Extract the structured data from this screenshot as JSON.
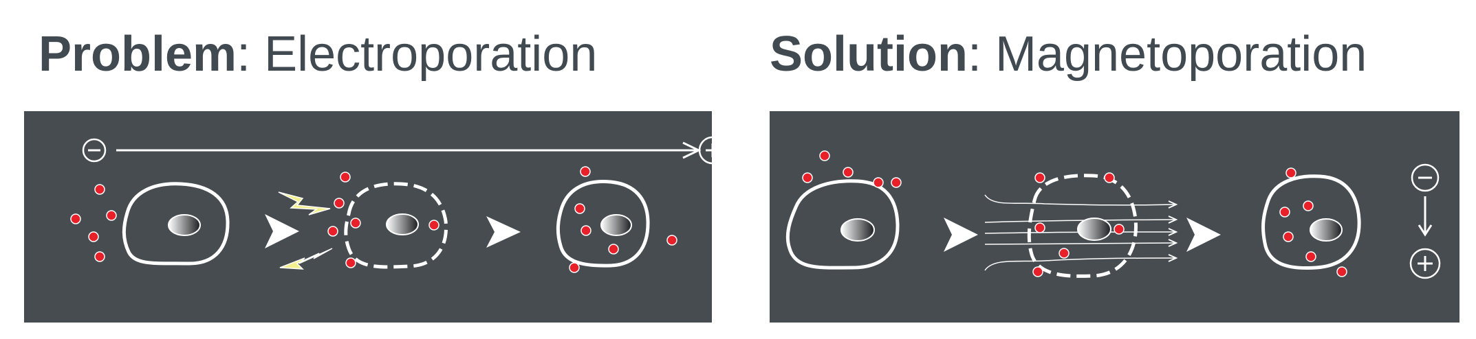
{
  "panels": {
    "problem": {
      "keyword": "Problem",
      "rest": ": Electroporation"
    },
    "solution": {
      "keyword": "Solution",
      "rest": ": Magnetoporation"
    }
  },
  "colors": {
    "background": "#ffffff",
    "panel": "#464c50",
    "heading_text": "#414a51",
    "stroke": "#ffffff",
    "dot": "#e8202a",
    "spark": "#f4ef8e"
  },
  "icons": {
    "negative_electrode": "minus-circle-icon",
    "positive_electrode": "plus-circle-icon",
    "step_arrow": "chevron-arrow-icon",
    "spark": "lightning-bolt-icon",
    "field_lines": "magnetic-field-lines-icon"
  }
}
